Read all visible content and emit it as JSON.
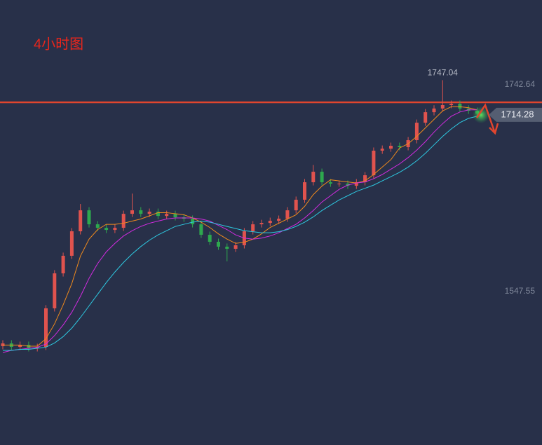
{
  "chart_data": {
    "type": "candlestick",
    "title": "4小时图",
    "open": [
      1496.0,
      1498.6,
      1495.3,
      1497.3,
      1494.0,
      1495.3,
      1531.7,
      1564.7,
      1581.3,
      1604.4,
      1624.2,
      1611.0,
      1607.7,
      1605.7,
      1607.7,
      1620.9,
      1624.2,
      1620.9,
      1622.9,
      1618.9,
      1620.9,
      1617.6,
      1616.3,
      1611.0,
      1601.1,
      1594.5,
      1589.9,
      1587.9,
      1591.2,
      1604.4,
      1611.0,
      1612.3,
      1614.3,
      1616.3,
      1624.2,
      1634.2,
      1650.7,
      1660.6,
      1650.7,
      1649.4,
      1649.4,
      1647.4,
      1650.7,
      1657.3,
      1680.5,
      1682.4,
      1685.1,
      1683.8,
      1690.4,
      1706.9,
      1716.8,
      1720.3,
      1723.5,
      1724.8,
      1720.3,
      1718.2
    ],
    "high": [
      1501.6,
      1501.6,
      1500.3,
      1500.3,
      1498.3,
      1534.7,
      1567.7,
      1584.3,
      1607.4,
      1630.2,
      1627.2,
      1614.0,
      1610.7,
      1610.7,
      1623.9,
      1640.0,
      1627.2,
      1625.9,
      1625.9,
      1623.9,
      1623.9,
      1620.6,
      1619.3,
      1614.0,
      1604.1,
      1597.5,
      1592.9,
      1594.2,
      1607.4,
      1614.0,
      1615.3,
      1617.3,
      1619.3,
      1627.2,
      1637.2,
      1653.7,
      1667.0,
      1663.6,
      1653.7,
      1652.4,
      1652.4,
      1653.7,
      1660.3,
      1683.5,
      1685.4,
      1688.1,
      1688.1,
      1693.4,
      1709.9,
      1719.8,
      1723.3,
      1747.04,
      1727.8,
      1727.8,
      1723.3,
      1721.2
    ],
    "low": [
      1493.0,
      1492.3,
      1492.3,
      1491.0,
      1491.0,
      1492.3,
      1528.7,
      1561.7,
      1578.3,
      1601.4,
      1608.0,
      1604.7,
      1602.7,
      1602.7,
      1604.7,
      1617.9,
      1617.9,
      1617.9,
      1615.9,
      1615.9,
      1614.6,
      1613.3,
      1608.0,
      1598.1,
      1591.5,
      1586.9,
      1576.0,
      1584.9,
      1588.2,
      1601.4,
      1608.0,
      1609.3,
      1611.3,
      1613.3,
      1621.2,
      1631.2,
      1647.7,
      1647.7,
      1646.4,
      1646.4,
      1644.4,
      1644.4,
      1647.7,
      1654.3,
      1677.5,
      1679.4,
      1680.8,
      1680.8,
      1687.4,
      1703.9,
      1713.8,
      1717.3,
      1720.5,
      1717.3,
      1715.2,
      1712.5
    ],
    "close": [
      1498.6,
      1495.3,
      1497.3,
      1494.0,
      1495.3,
      1531.7,
      1564.7,
      1581.3,
      1604.4,
      1624.2,
      1611.0,
      1607.7,
      1605.7,
      1607.7,
      1620.9,
      1624.2,
      1620.9,
      1622.9,
      1618.9,
      1620.9,
      1617.6,
      1616.3,
      1611.0,
      1601.1,
      1594.5,
      1589.9,
      1587.9,
      1591.2,
      1604.4,
      1611.0,
      1612.3,
      1614.3,
      1616.3,
      1624.2,
      1634.2,
      1650.7,
      1660.6,
      1650.7,
      1649.4,
      1649.4,
      1647.4,
      1650.7,
      1657.3,
      1680.5,
      1682.4,
      1685.1,
      1683.8,
      1690.4,
      1706.9,
      1716.8,
      1720.3,
      1723.5,
      1724.8,
      1720.3,
      1718.2,
      1715.5
    ],
    "up_color": "#e0534e",
    "down_color": "#2ea84e",
    "lines": [
      {
        "color": "#f08a1c",
        "values": [
          1497,
          1497,
          1497,
          1496,
          1496,
          1503,
          1517,
          1535,
          1555,
          1581,
          1597,
          1606,
          1611,
          1611,
          1612,
          1614,
          1616,
          1619,
          1622,
          1622,
          1621,
          1620,
          1617,
          1613,
          1608,
          1602,
          1597,
          1593,
          1594,
          1597,
          1602,
          1608,
          1612,
          1616,
          1620,
          1628,
          1639,
          1647,
          1653,
          1652,
          1651,
          1650,
          1652,
          1658,
          1665,
          1672,
          1683,
          1687,
          1694,
          1702,
          1710,
          1718,
          1722,
          1722,
          1721,
          1719
        ]
      },
      {
        "color": "#d22be0",
        "values": [
          1490,
          1492,
          1493,
          1494,
          1495,
          1498,
          1506,
          1516,
          1528,
          1543,
          1560,
          1574,
          1585,
          1593,
          1600,
          1605,
          1609,
          1612,
          1614,
          1616,
          1617,
          1617,
          1617,
          1616,
          1614,
          1610,
          1606,
          1601,
          1598,
          1597,
          1598,
          1600,
          1603,
          1607,
          1611,
          1617,
          1624,
          1632,
          1638,
          1644,
          1648,
          1650,
          1651,
          1654,
          1658,
          1663,
          1668,
          1674,
          1681,
          1689,
          1698,
          1706,
          1713,
          1717,
          1719,
          1719
        ]
      },
      {
        "color": "#2ec8e0",
        "values": [
          1492,
          1492,
          1493,
          1493,
          1494,
          1495,
          1499,
          1505,
          1513,
          1523,
          1534,
          1545,
          1556,
          1566,
          1575,
          1583,
          1590,
          1596,
          1601,
          1605,
          1609,
          1611,
          1613,
          1614,
          1613,
          1611,
          1609,
          1607,
          1605,
          1604,
          1603,
          1603,
          1604,
          1606,
          1609,
          1613,
          1618,
          1624,
          1629,
          1634,
          1638,
          1642,
          1645,
          1648,
          1652,
          1656,
          1660,
          1665,
          1671,
          1678,
          1686,
          1694,
          1701,
          1707,
          1711,
          1713
        ]
      }
    ],
    "hline": 1726.1,
    "hline_color": "#e0452e",
    "last_price": 1714.28,
    "high_label_index": 51,
    "ylim": [
      1402.7,
      1822.7
    ],
    "yticks": [
      1547.55,
      1742.64
    ],
    "grid": false
  }
}
